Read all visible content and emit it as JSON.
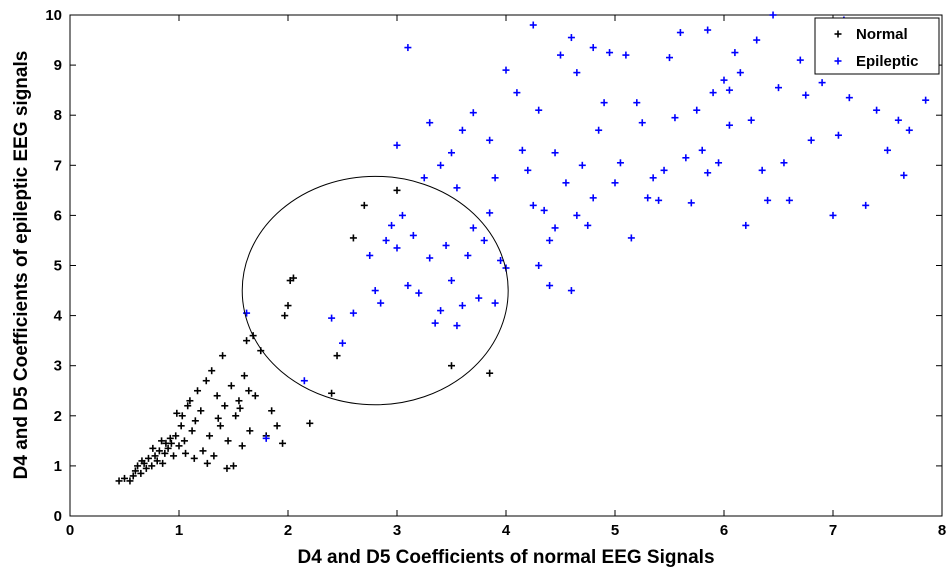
{
  "chart_data": {
    "type": "scatter",
    "xlabel": "D4 and D5 Coefficients of normal EEG Signals",
    "ylabel": "D4 and D5 Coefficients of epileptic EEG signals",
    "xlim": [
      0,
      8
    ],
    "ylim": [
      0,
      10
    ],
    "x_ticks": [
      "0",
      "1",
      "2",
      "3",
      "4",
      "5",
      "6",
      "7",
      "8"
    ],
    "y_ticks": [
      "0",
      "1",
      "2",
      "3",
      "4",
      "5",
      "6",
      "7",
      "8",
      "9",
      "10"
    ],
    "grid": false,
    "legend_position": "top-right",
    "annotation": {
      "shape": "ellipse",
      "cx": 2.8,
      "cy": 4.5,
      "rx": 1.22,
      "ry": 2.28
    },
    "series": [
      {
        "name": "Normal",
        "marker": "plus",
        "color": "#000000",
        "points": [
          [
            0.45,
            0.7
          ],
          [
            0.5,
            0.75
          ],
          [
            0.55,
            0.7
          ],
          [
            0.6,
            0.9
          ],
          [
            0.62,
            1.0
          ],
          [
            0.65,
            0.85
          ],
          [
            0.68,
            1.05
          ],
          [
            0.7,
            0.95
          ],
          [
            0.72,
            1.15
          ],
          [
            0.75,
            1.0
          ],
          [
            0.78,
            1.2
          ],
          [
            0.8,
            1.1
          ],
          [
            0.82,
            1.3
          ],
          [
            0.85,
            1.05
          ],
          [
            0.87,
            1.25
          ],
          [
            0.88,
            1.45
          ],
          [
            0.9,
            1.35
          ],
          [
            0.92,
            1.55
          ],
          [
            0.95,
            1.2
          ],
          [
            0.97,
            1.6
          ],
          [
            1.0,
            1.4
          ],
          [
            1.02,
            1.8
          ],
          [
            1.03,
            2.0
          ],
          [
            1.05,
            1.5
          ],
          [
            1.08,
            2.2
          ],
          [
            1.1,
            2.3
          ],
          [
            1.12,
            1.7
          ],
          [
            1.15,
            1.9
          ],
          [
            1.17,
            2.5
          ],
          [
            1.2,
            2.1
          ],
          [
            1.22,
            1.3
          ],
          [
            1.25,
            2.7
          ],
          [
            1.28,
            1.6
          ],
          [
            1.3,
            2.9
          ],
          [
            1.32,
            1.2
          ],
          [
            1.35,
            2.4
          ],
          [
            1.38,
            1.8
          ],
          [
            1.4,
            3.2
          ],
          [
            1.42,
            2.2
          ],
          [
            1.45,
            1.5
          ],
          [
            1.48,
            2.6
          ],
          [
            1.5,
            1.0
          ],
          [
            1.52,
            2.0
          ],
          [
            1.55,
            2.3
          ],
          [
            1.58,
            1.4
          ],
          [
            1.6,
            2.8
          ],
          [
            1.62,
            3.5
          ],
          [
            1.65,
            1.7
          ],
          [
            1.68,
            3.6
          ],
          [
            1.7,
            2.4
          ],
          [
            1.75,
            3.3
          ],
          [
            1.8,
            1.6
          ],
          [
            1.85,
            2.1
          ],
          [
            1.9,
            1.8
          ],
          [
            1.95,
            1.45
          ],
          [
            1.97,
            4.0
          ],
          [
            2.0,
            4.2
          ],
          [
            2.02,
            4.7
          ],
          [
            2.05,
            4.75
          ],
          [
            2.2,
            1.85
          ],
          [
            2.4,
            2.45
          ],
          [
            2.45,
            3.2
          ],
          [
            2.6,
            5.55
          ],
          [
            2.7,
            6.2
          ],
          [
            3.0,
            6.5
          ],
          [
            3.5,
            3.0
          ],
          [
            3.85,
            2.85
          ],
          [
            0.58,
            0.8
          ],
          [
            0.66,
            1.1
          ],
          [
            0.76,
            1.35
          ],
          [
            0.84,
            1.5
          ],
          [
            0.93,
            1.45
          ],
          [
            1.06,
            1.25
          ],
          [
            1.14,
            1.15
          ],
          [
            1.26,
            1.05
          ],
          [
            1.36,
            1.95
          ],
          [
            1.44,
            0.95
          ],
          [
            1.56,
            2.15
          ],
          [
            1.64,
            2.5
          ],
          [
            0.98,
            2.05
          ]
        ]
      },
      {
        "name": "Epileptic",
        "marker": "plus",
        "color": "#0000ff",
        "points": [
          [
            1.62,
            4.05
          ],
          [
            1.8,
            1.55
          ],
          [
            2.15,
            2.7
          ],
          [
            2.4,
            3.95
          ],
          [
            2.5,
            3.45
          ],
          [
            2.6,
            4.05
          ],
          [
            2.75,
            5.2
          ],
          [
            2.8,
            4.5
          ],
          [
            2.85,
            4.25
          ],
          [
            2.9,
            5.5
          ],
          [
            2.95,
            5.8
          ],
          [
            3.0,
            5.35
          ],
          [
            3.05,
            6.0
          ],
          [
            3.1,
            4.6
          ],
          [
            3.15,
            5.6
          ],
          [
            3.2,
            4.45
          ],
          [
            3.25,
            6.75
          ],
          [
            3.3,
            5.15
          ],
          [
            3.35,
            3.85
          ],
          [
            3.4,
            4.1
          ],
          [
            3.45,
            5.4
          ],
          [
            3.5,
            4.7
          ],
          [
            3.55,
            3.8
          ],
          [
            3.6,
            4.2
          ],
          [
            3.65,
            5.2
          ],
          [
            3.7,
            5.75
          ],
          [
            3.75,
            4.35
          ],
          [
            3.8,
            5.5
          ],
          [
            3.85,
            6.05
          ],
          [
            3.9,
            4.25
          ],
          [
            3.95,
            5.1
          ],
          [
            4.0,
            4.95
          ],
          [
            3.0,
            7.4
          ],
          [
            3.1,
            9.35
          ],
          [
            3.3,
            7.85
          ],
          [
            3.5,
            7.25
          ],
          [
            3.6,
            7.7
          ],
          [
            3.7,
            8.05
          ],
          [
            3.85,
            7.5
          ],
          [
            3.9,
            6.75
          ],
          [
            4.0,
            8.9
          ],
          [
            4.1,
            8.45
          ],
          [
            4.15,
            7.3
          ],
          [
            4.2,
            6.9
          ],
          [
            4.25,
            9.8
          ],
          [
            4.3,
            8.1
          ],
          [
            4.35,
            6.1
          ],
          [
            4.4,
            5.5
          ],
          [
            4.45,
            7.25
          ],
          [
            4.5,
            9.2
          ],
          [
            4.55,
            6.65
          ],
          [
            4.6,
            9.55
          ],
          [
            4.65,
            8.85
          ],
          [
            4.7,
            7.0
          ],
          [
            4.75,
            5.8
          ],
          [
            4.8,
            9.35
          ],
          [
            4.85,
            7.7
          ],
          [
            4.9,
            8.25
          ],
          [
            4.95,
            9.25
          ],
          [
            5.0,
            6.65
          ],
          [
            5.05,
            7.05
          ],
          [
            5.1,
            9.2
          ],
          [
            5.15,
            5.55
          ],
          [
            5.2,
            8.25
          ],
          [
            5.25,
            7.85
          ],
          [
            5.3,
            6.35
          ],
          [
            5.35,
            6.75
          ],
          [
            5.4,
            6.3
          ],
          [
            5.5,
            9.15
          ],
          [
            5.55,
            7.95
          ],
          [
            5.6,
            9.65
          ],
          [
            5.65,
            7.15
          ],
          [
            5.7,
            6.25
          ],
          [
            5.75,
            8.1
          ],
          [
            5.8,
            7.3
          ],
          [
            5.85,
            9.7
          ],
          [
            5.9,
            8.45
          ],
          [
            5.95,
            7.05
          ],
          [
            6.0,
            8.7
          ],
          [
            6.05,
            7.8
          ],
          [
            6.1,
            9.25
          ],
          [
            6.15,
            8.85
          ],
          [
            6.2,
            5.8
          ],
          [
            6.25,
            7.9
          ],
          [
            6.3,
            9.5
          ],
          [
            6.35,
            6.9
          ],
          [
            6.4,
            6.3
          ],
          [
            6.45,
            10.0
          ],
          [
            6.5,
            8.55
          ],
          [
            6.55,
            7.05
          ],
          [
            6.6,
            6.3
          ],
          [
            6.7,
            9.1
          ],
          [
            6.75,
            8.4
          ],
          [
            6.8,
            7.5
          ],
          [
            6.9,
            8.65
          ],
          [
            7.0,
            6.0
          ],
          [
            7.05,
            7.6
          ],
          [
            7.1,
            9.9
          ],
          [
            7.15,
            8.35
          ],
          [
            7.3,
            6.2
          ],
          [
            7.4,
            8.1
          ],
          [
            7.5,
            7.3
          ],
          [
            7.6,
            7.9
          ],
          [
            7.65,
            6.8
          ],
          [
            7.7,
            7.7
          ],
          [
            7.85,
            8.3
          ],
          [
            4.3,
            5.0
          ],
          [
            4.4,
            4.6
          ],
          [
            4.6,
            4.5
          ],
          [
            4.45,
            5.75
          ],
          [
            4.65,
            6.0
          ],
          [
            4.8,
            6.35
          ],
          [
            4.25,
            6.2
          ],
          [
            3.4,
            7.0
          ],
          [
            3.55,
            6.55
          ],
          [
            5.45,
            6.9
          ],
          [
            5.85,
            6.85
          ],
          [
            6.05,
            8.5
          ]
        ]
      }
    ]
  }
}
